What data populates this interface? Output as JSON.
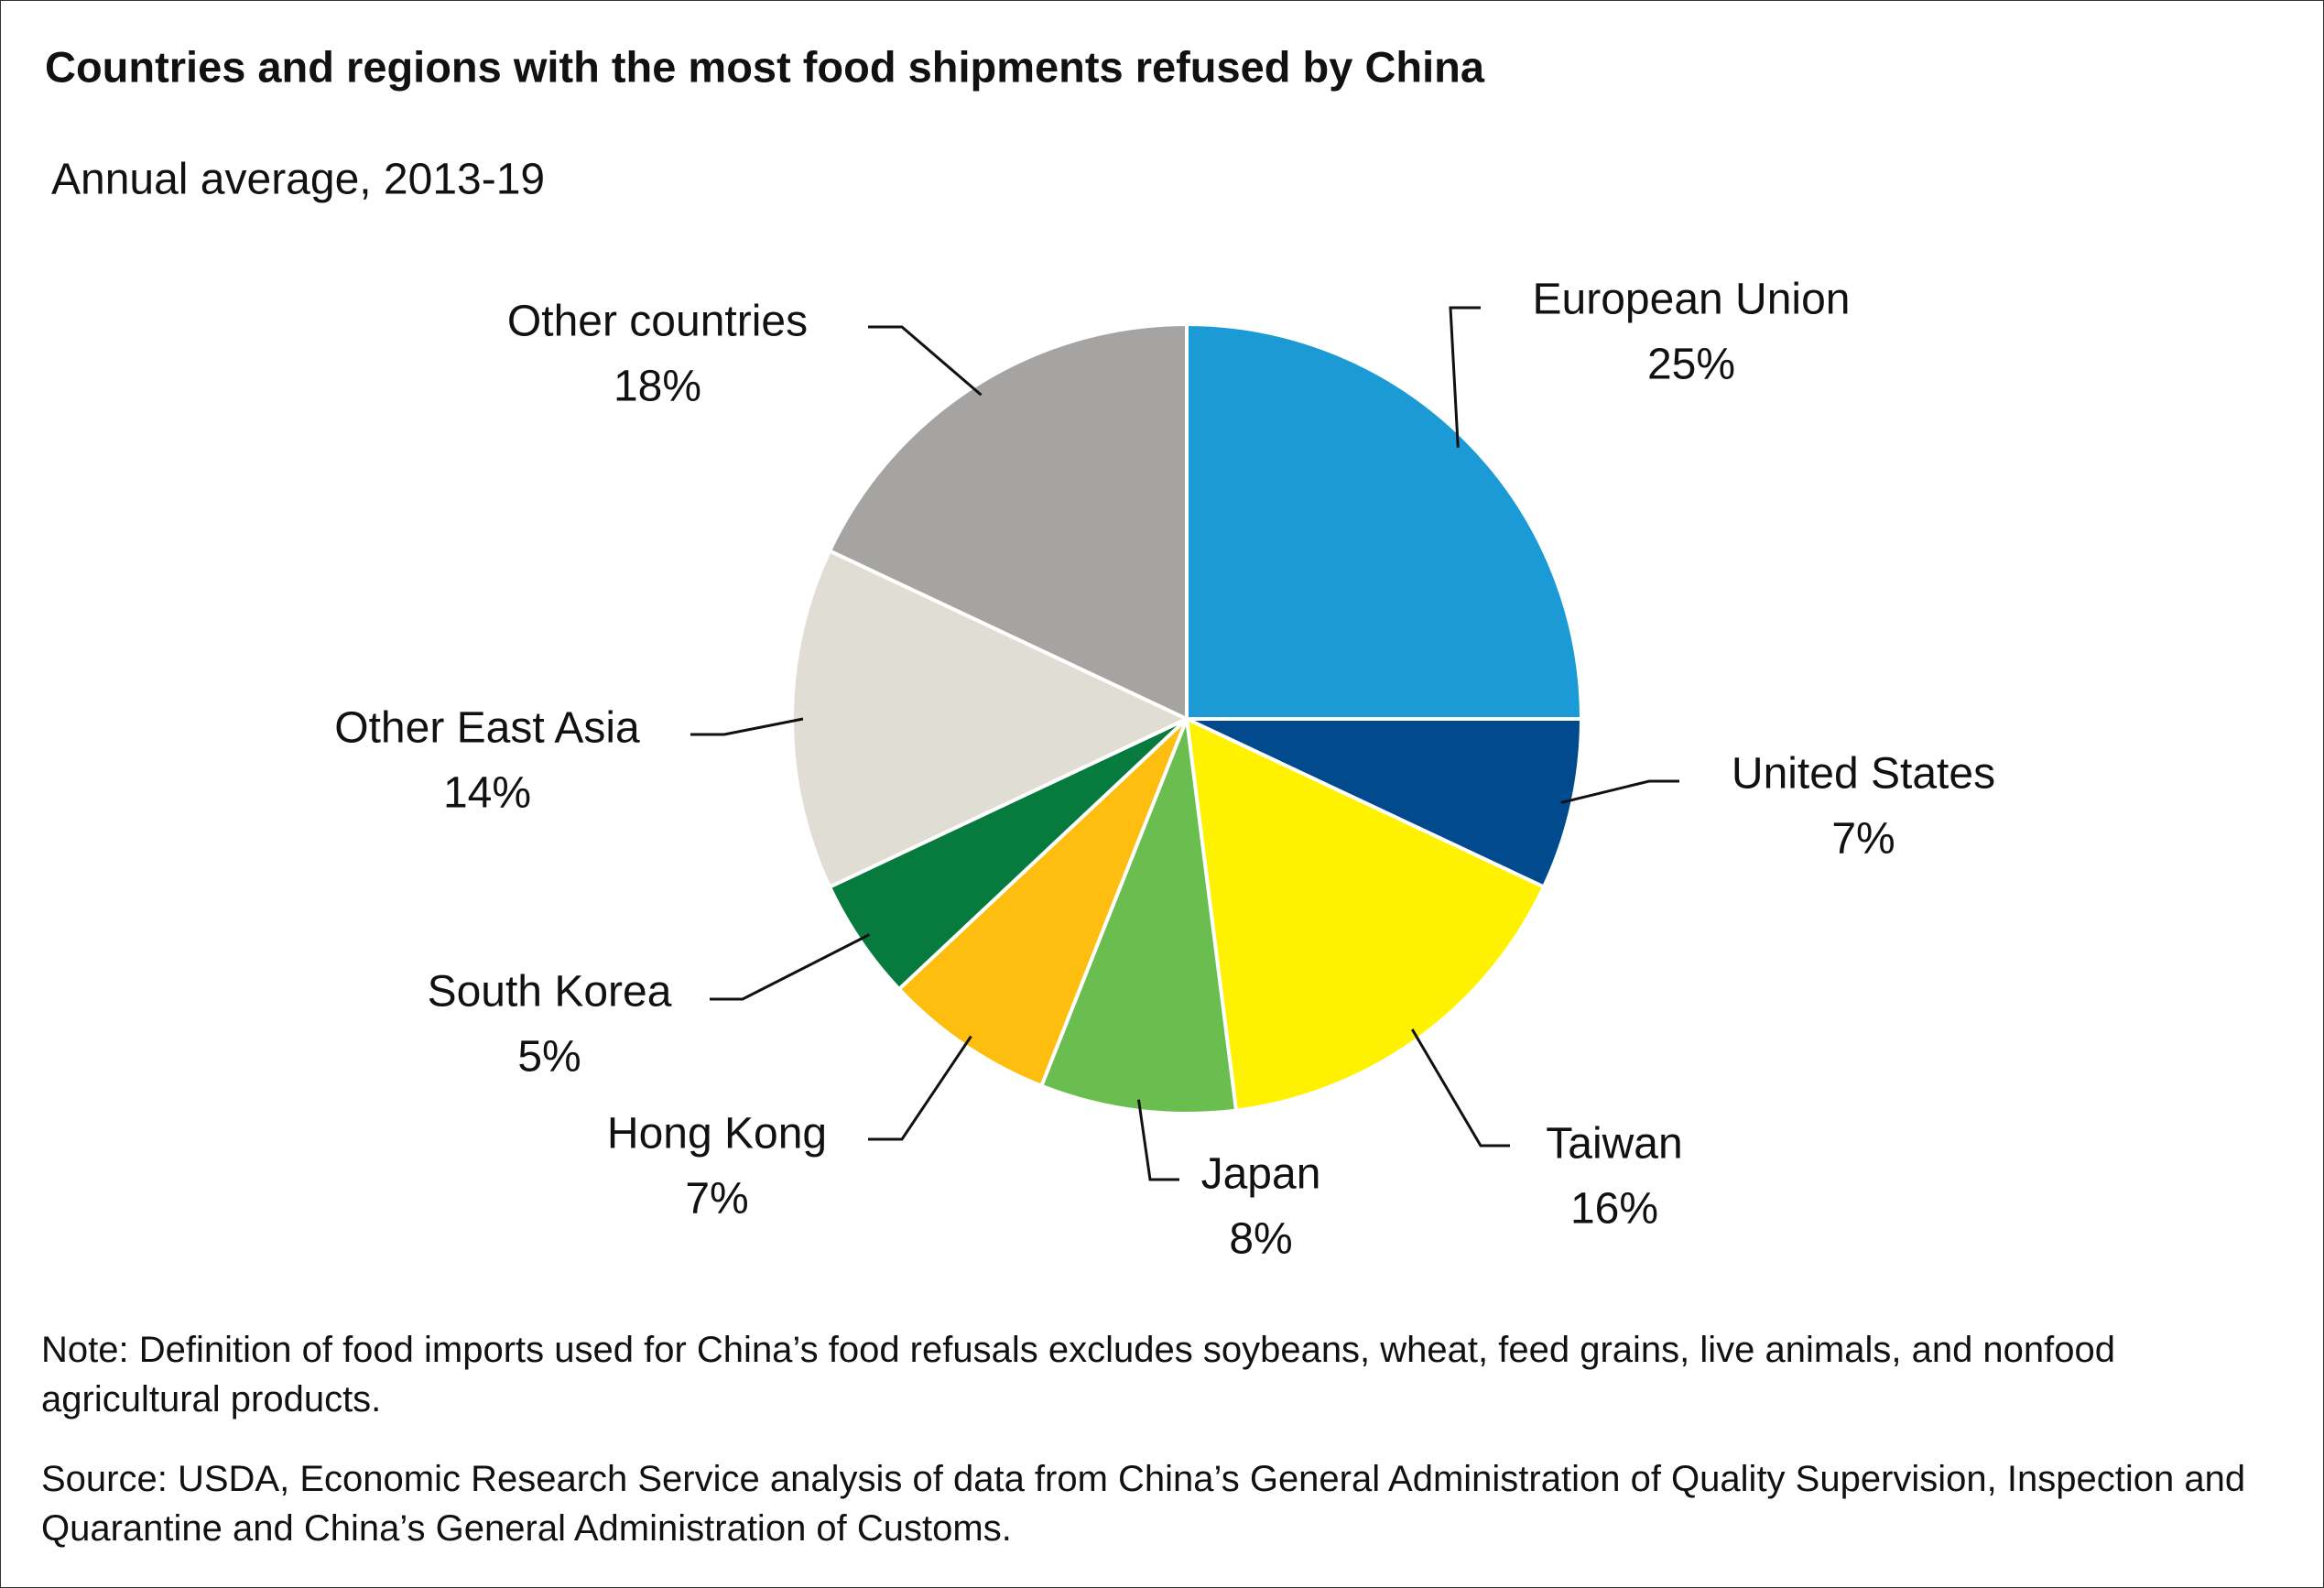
{
  "chart_data": {
    "type": "pie",
    "title": "Countries and regions with the most food shipments refused by China",
    "subtitle": "Annual average, 2013-19",
    "categories": [
      "European Union",
      "United States",
      "Taiwan",
      "Japan",
      "Hong Kong",
      "South Korea",
      "Other East Asia",
      "Other countries"
    ],
    "values": [
      25,
      7,
      16,
      8,
      7,
      5,
      14,
      18
    ],
    "value_labels": [
      "25%",
      "7%",
      "16%",
      "8%",
      "7%",
      "5%",
      "14%",
      "18%"
    ],
    "colors": [
      "#1b9ad6",
      "#004a8d",
      "#fff200",
      "#6abd4f",
      "#fdbe10",
      "#077a3e",
      "#e0ddd5",
      "#a5a4a3"
    ],
    "note": "Note: Definition of food imports used for China’s food refusals excludes soybeans, wheat, feed grains, live animals, and nonfood agricultural products.",
    "source": "Source: USDA, Economic Research Service analysis of data from China’s General Administration of Quality Supervision, Inspection and Quarantine and China’s General Administration of Customs."
  }
}
